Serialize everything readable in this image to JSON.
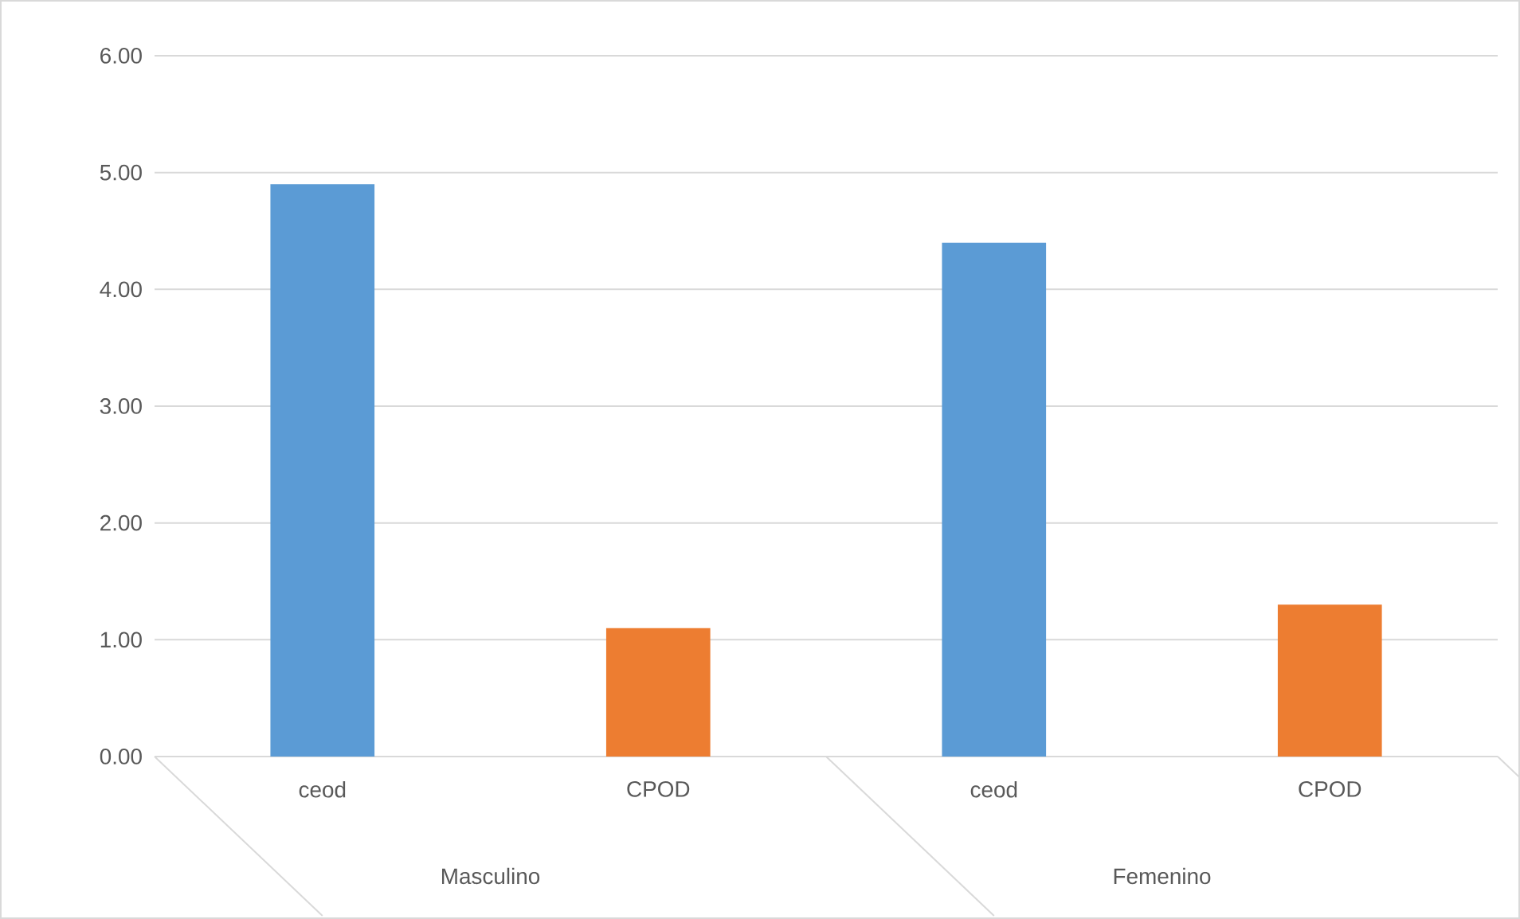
{
  "chart_data": {
    "type": "bar",
    "categories": [
      "ceod",
      "CPOD",
      "ceod",
      "CPOD"
    ],
    "values": [
      4.9,
      1.1,
      4.4,
      1.3
    ],
    "colors": [
      "#5b9bd5",
      "#ed7d31",
      "#5b9bd5",
      "#ed7d31"
    ],
    "ylim": [
      0,
      6
    ],
    "yticks": [
      {
        "value": 0,
        "label": "0.00"
      },
      {
        "value": 1,
        "label": "1.00"
      },
      {
        "value": 2,
        "label": "2.00"
      },
      {
        "value": 3,
        "label": "3.00"
      },
      {
        "value": 4,
        "label": "4.00"
      },
      {
        "value": 5,
        "label": "5.00"
      },
      {
        "value": 6,
        "label": "6.00"
      }
    ],
    "grid": "y",
    "annotations": [
      "Masculino",
      "Femenino"
    ]
  }
}
